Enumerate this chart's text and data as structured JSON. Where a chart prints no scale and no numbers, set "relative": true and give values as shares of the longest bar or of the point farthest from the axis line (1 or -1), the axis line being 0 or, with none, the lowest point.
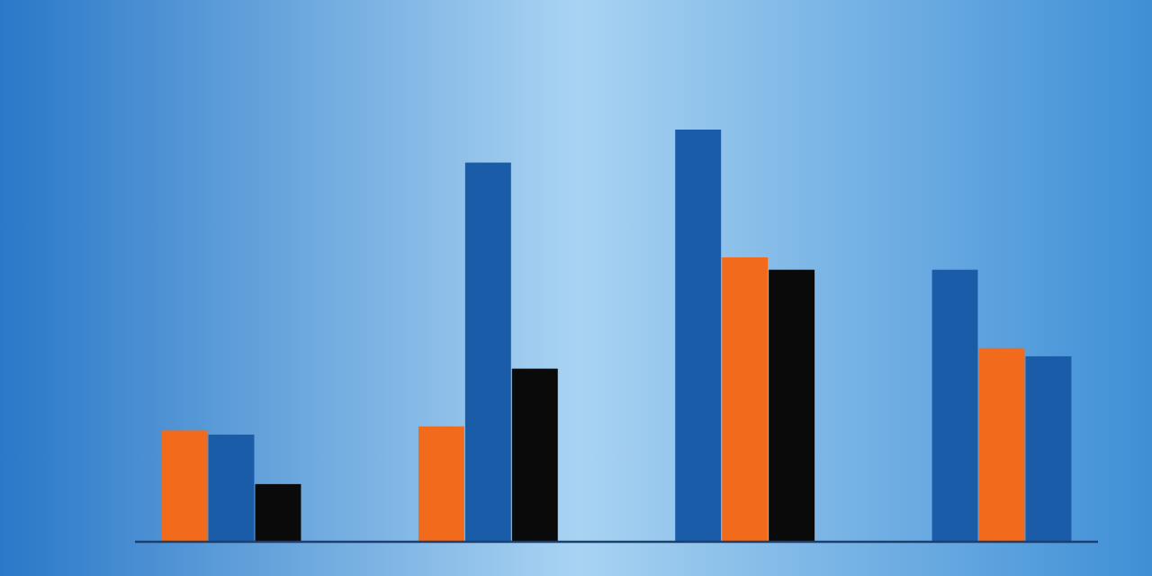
{
  "chart_data": {
    "type": "bar",
    "relative": true,
    "categories": [
      null,
      null,
      null,
      null
    ],
    "series": [
      {
        "colors": [
          "#f26a1b",
          "#f26a1b",
          "#1a5ca8",
          "#1a5ca8"
        ],
        "values": [
          0.27,
          0.28,
          1.0,
          0.66
        ]
      },
      {
        "colors": [
          "#1a5ca8",
          "#1a5ca8",
          "#f26a1b",
          "#f26a1b"
        ],
        "values": [
          0.26,
          0.92,
          0.69,
          0.47
        ]
      },
      {
        "colors": [
          "#0a0a0a",
          "#0a0a0a",
          "#0a0a0a",
          "#1a5ca8"
        ],
        "values": [
          0.14,
          0.42,
          0.66,
          0.45
        ]
      }
    ]
  }
}
